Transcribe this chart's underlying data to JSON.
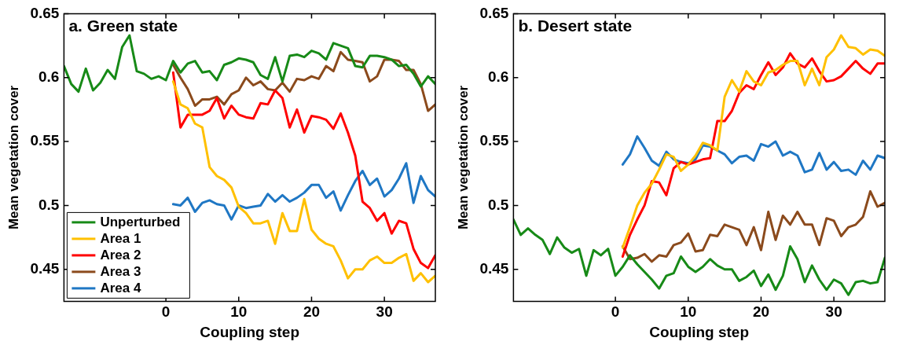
{
  "chart_data": [
    {
      "type": "line",
      "title": "a. Green state",
      "xlabel": "Coupling step",
      "ylabel": "Mean vegetation cover",
      "legend": "bottom left",
      "grid": false,
      "line_style": "solid",
      "marker": "none",
      "x": [
        -14,
        -13,
        -12,
        -11,
        -10,
        -9,
        -8,
        -7,
        -6,
        -5,
        -4,
        -3,
        -2,
        -1,
        0,
        1,
        2,
        3,
        4,
        5,
        6,
        7,
        8,
        9,
        10,
        11,
        12,
        13,
        14,
        15,
        16,
        17,
        18,
        19,
        20,
        21,
        22,
        23,
        24,
        25,
        26,
        27,
        28,
        29,
        30,
        31,
        32,
        33,
        34,
        35,
        36,
        37
      ],
      "xlim": [
        -14,
        37
      ],
      "xticks": [
        0,
        10,
        20,
        30
      ],
      "ylim": [
        0.425,
        0.65
      ],
      "yticks": [
        0.45,
        0.5,
        0.55,
        0.6,
        0.65
      ],
      "series": [
        {
          "name": "Unperturbed",
          "color": "#178a17",
          "values": [
            0.609,
            0.595,
            0.589,
            0.607,
            0.59,
            0.596,
            0.606,
            0.599,
            0.624,
            0.633,
            0.605,
            0.603,
            0.599,
            0.601,
            0.598,
            0.613,
            0.604,
            0.611,
            0.613,
            0.604,
            0.605,
            0.598,
            0.61,
            0.612,
            0.615,
            0.614,
            0.612,
            0.602,
            0.599,
            0.616,
            0.597,
            0.617,
            0.618,
            0.616,
            0.621,
            0.619,
            0.614,
            0.627,
            0.625,
            0.623,
            0.609,
            0.608,
            0.617,
            0.617,
            0.616,
            0.614,
            0.609,
            0.61,
            0.603,
            0.593,
            0.601,
            0.595
          ]
        },
        {
          "name": "Area 1",
          "color": "#ffc000",
          "values": [
            null,
            null,
            null,
            null,
            null,
            null,
            null,
            null,
            null,
            null,
            null,
            null,
            null,
            null,
            null,
            0.597,
            0.579,
            0.576,
            0.564,
            0.561,
            0.53,
            0.523,
            0.52,
            0.514,
            0.499,
            0.494,
            0.486,
            0.486,
            0.488,
            0.47,
            0.494,
            0.48,
            0.48,
            0.505,
            0.481,
            0.474,
            0.47,
            0.468,
            0.457,
            0.443,
            0.45,
            0.45,
            0.457,
            0.46,
            0.455,
            0.455,
            0.459,
            0.462,
            0.441,
            0.447,
            0.44,
            0.445
          ]
        },
        {
          "name": "Area 2",
          "color": "#ff0000",
          "values": [
            null,
            null,
            null,
            null,
            null,
            null,
            null,
            null,
            null,
            null,
            null,
            null,
            null,
            null,
            null,
            0.604,
            0.561,
            0.571,
            0.571,
            0.571,
            0.574,
            0.584,
            0.568,
            0.578,
            0.571,
            0.569,
            0.568,
            0.58,
            0.579,
            0.59,
            0.584,
            0.561,
            0.575,
            0.557,
            0.57,
            0.569,
            0.567,
            0.56,
            0.572,
            0.557,
            0.539,
            0.503,
            0.498,
            0.488,
            0.494,
            0.478,
            0.488,
            0.486,
            0.466,
            0.455,
            0.451,
            0.461
          ]
        },
        {
          "name": "Area 3",
          "color": "#8b4a1c",
          "values": [
            null,
            null,
            null,
            null,
            null,
            null,
            null,
            null,
            null,
            null,
            null,
            null,
            null,
            null,
            null,
            0.61,
            0.6,
            0.591,
            0.578,
            0.583,
            0.583,
            0.585,
            0.579,
            0.587,
            0.59,
            0.6,
            0.594,
            0.597,
            0.591,
            0.59,
            0.596,
            0.589,
            0.599,
            0.598,
            0.601,
            0.599,
            0.609,
            0.605,
            0.62,
            0.614,
            0.613,
            0.612,
            0.597,
            0.601,
            0.614,
            0.614,
            0.613,
            0.606,
            0.606,
            0.595,
            0.574,
            0.579
          ]
        },
        {
          "name": "Area 4",
          "color": "#1f77c4",
          "values": [
            null,
            null,
            null,
            null,
            null,
            null,
            null,
            null,
            null,
            null,
            null,
            null,
            null,
            null,
            null,
            0.501,
            0.5,
            0.506,
            0.495,
            0.502,
            0.504,
            0.501,
            0.5,
            0.489,
            0.5,
            0.498,
            0.499,
            0.5,
            0.509,
            0.503,
            0.508,
            0.503,
            0.506,
            0.51,
            0.516,
            0.516,
            0.506,
            0.511,
            0.496,
            0.508,
            0.519,
            0.527,
            0.516,
            0.521,
            0.507,
            0.512,
            0.521,
            0.533,
            0.502,
            0.523,
            0.512,
            0.507
          ]
        }
      ]
    },
    {
      "type": "line",
      "title": "b. Desert state",
      "xlabel": "Coupling step",
      "ylabel": "Mean vegetation cover",
      "grid": false,
      "line_style": "solid",
      "marker": "none",
      "x": [
        -14,
        -13,
        -12,
        -11,
        -10,
        -9,
        -8,
        -7,
        -6,
        -5,
        -4,
        -3,
        -2,
        -1,
        0,
        1,
        2,
        3,
        4,
        5,
        6,
        7,
        8,
        9,
        10,
        11,
        12,
        13,
        14,
        15,
        16,
        17,
        18,
        19,
        20,
        21,
        22,
        23,
        24,
        25,
        26,
        27,
        28,
        29,
        30,
        31,
        32,
        33,
        34,
        35,
        36,
        37
      ],
      "xlim": [
        -14,
        37
      ],
      "xticks": [
        0,
        10,
        20,
        30
      ],
      "ylim": [
        0.425,
        0.65
      ],
      "yticks": [
        0.45,
        0.5,
        0.55,
        0.6,
        0.65
      ],
      "series": [
        {
          "color": "#178a17",
          "values": [
            0.489,
            0.477,
            0.482,
            0.477,
            0.473,
            0.462,
            0.475,
            0.467,
            0.463,
            0.466,
            0.445,
            0.465,
            0.461,
            0.466,
            0.445,
            0.452,
            0.461,
            0.454,
            0.448,
            0.442,
            0.435,
            0.445,
            0.447,
            0.46,
            0.452,
            0.448,
            0.452,
            0.458,
            0.453,
            0.45,
            0.45,
            0.441,
            0.444,
            0.449,
            0.437,
            0.446,
            0.434,
            0.445,
            0.468,
            0.458,
            0.44,
            0.453,
            0.442,
            0.434,
            0.442,
            0.439,
            0.43,
            0.44,
            0.441,
            0.439,
            0.44,
            0.459
          ]
        },
        {
          "color": "#ffc000",
          "values": [
            null,
            null,
            null,
            null,
            null,
            null,
            null,
            null,
            null,
            null,
            null,
            null,
            null,
            null,
            null,
            0.467,
            0.483,
            0.5,
            0.51,
            0.517,
            0.528,
            0.54,
            0.538,
            0.527,
            0.532,
            0.539,
            0.549,
            0.547,
            0.543,
            0.585,
            0.598,
            0.589,
            0.605,
            0.597,
            0.594,
            0.604,
            0.606,
            0.61,
            0.613,
            0.613,
            0.594,
            0.607,
            0.594,
            0.616,
            0.622,
            0.633,
            0.624,
            0.623,
            0.618,
            0.622,
            0.621,
            0.617
          ]
        },
        {
          "color": "#ff0000",
          "values": [
            null,
            null,
            null,
            null,
            null,
            null,
            null,
            null,
            null,
            null,
            null,
            null,
            null,
            null,
            null,
            0.46,
            0.477,
            0.489,
            0.5,
            0.519,
            0.518,
            0.508,
            0.529,
            0.534,
            0.532,
            0.534,
            0.536,
            0.537,
            0.566,
            0.566,
            0.574,
            0.588,
            0.594,
            0.591,
            0.602,
            0.612,
            0.602,
            0.608,
            0.619,
            0.611,
            0.608,
            0.615,
            0.605,
            0.597,
            0.598,
            0.601,
            0.607,
            0.613,
            0.607,
            0.603,
            0.611,
            0.611
          ]
        },
        {
          "color": "#8b4a1c",
          "values": [
            null,
            null,
            null,
            null,
            null,
            null,
            null,
            null,
            null,
            null,
            null,
            null,
            null,
            null,
            null,
            0.468,
            0.458,
            0.459,
            0.462,
            0.456,
            0.461,
            0.46,
            0.469,
            0.471,
            0.478,
            0.464,
            0.465,
            0.477,
            0.476,
            0.485,
            0.483,
            0.481,
            0.469,
            0.483,
            0.465,
            0.495,
            0.473,
            0.492,
            0.485,
            0.495,
            0.485,
            0.485,
            0.469,
            0.49,
            0.488,
            0.476,
            0.483,
            0.485,
            0.491,
            0.511,
            0.499,
            0.502
          ]
        },
        {
          "color": "#1f77c4",
          "values": [
            null,
            null,
            null,
            null,
            null,
            null,
            null,
            null,
            null,
            null,
            null,
            null,
            null,
            null,
            null,
            0.532,
            0.54,
            0.554,
            0.545,
            0.535,
            0.531,
            0.542,
            0.536,
            0.534,
            0.533,
            0.536,
            0.547,
            0.546,
            0.543,
            0.54,
            0.533,
            0.538,
            0.539,
            0.535,
            0.548,
            0.546,
            0.55,
            0.539,
            0.542,
            0.539,
            0.526,
            0.528,
            0.541,
            0.528,
            0.534,
            0.527,
            0.528,
            0.524,
            0.535,
            0.528,
            0.539,
            0.537
          ]
        }
      ]
    }
  ]
}
